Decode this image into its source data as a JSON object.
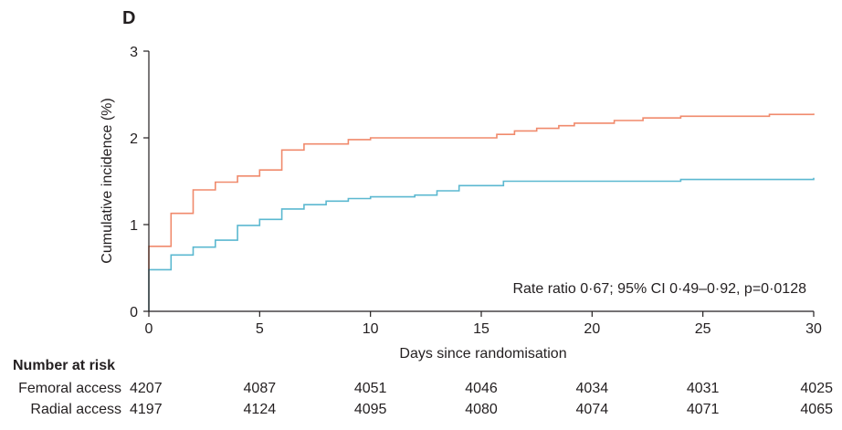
{
  "chart_data": {
    "type": "line",
    "panel_label": "D",
    "xlabel": "Days since randomisation",
    "ylabel": "Cumulative incidence (%)",
    "xlim": [
      0,
      30
    ],
    "ylim": [
      0,
      3
    ],
    "x_ticks": [
      0,
      5,
      10,
      15,
      20,
      25,
      30
    ],
    "x_tick_labels": [
      "0",
      "5",
      "10",
      "15",
      "20",
      "25",
      "30"
    ],
    "y_ticks": [
      0,
      1,
      2,
      3
    ],
    "y_tick_labels": [
      "0",
      "1",
      "2",
      "3"
    ],
    "grid": false,
    "step": true,
    "annotation": "Rate ratio 0·67; 95% CI 0·49–0·92, p=0·0128",
    "series": [
      {
        "key": "femoral",
        "color": "#f08a6c",
        "points": [
          [
            0,
            0.75
          ],
          [
            1,
            1.13
          ],
          [
            2,
            1.4
          ],
          [
            3,
            1.49
          ],
          [
            4,
            1.56
          ],
          [
            5,
            1.63
          ],
          [
            6,
            1.86
          ],
          [
            7,
            1.93
          ],
          [
            9,
            1.98
          ],
          [
            10,
            2.0
          ],
          [
            15.7,
            2.04
          ],
          [
            16.5,
            2.08
          ],
          [
            17.5,
            2.11
          ],
          [
            18.5,
            2.14
          ],
          [
            19.2,
            2.17
          ],
          [
            21,
            2.2
          ],
          [
            22.3,
            2.23
          ],
          [
            24,
            2.25
          ],
          [
            28,
            2.27
          ],
          [
            30,
            2.28
          ]
        ]
      },
      {
        "key": "radial",
        "color": "#5bb8d0",
        "points": [
          [
            0,
            0.48
          ],
          [
            1,
            0.65
          ],
          [
            2,
            0.74
          ],
          [
            3,
            0.82
          ],
          [
            4,
            0.99
          ],
          [
            5,
            1.06
          ],
          [
            6,
            1.18
          ],
          [
            7,
            1.23
          ],
          [
            8,
            1.27
          ],
          [
            9,
            1.3
          ],
          [
            10,
            1.32
          ],
          [
            12,
            1.34
          ],
          [
            13,
            1.39
          ],
          [
            14,
            1.45
          ],
          [
            16,
            1.5
          ],
          [
            24,
            1.52
          ],
          [
            30,
            1.54
          ]
        ]
      }
    ]
  },
  "risk_table": {
    "title": "Number at risk",
    "days": [
      0,
      5,
      10,
      15,
      20,
      25,
      30
    ],
    "rows": [
      {
        "label": "Femoral access",
        "values": [
          "4207",
          "4087",
          "4051",
          "4046",
          "4034",
          "4031",
          "4025"
        ]
      },
      {
        "label": "Radial access",
        "values": [
          "4197",
          "4124",
          "4095",
          "4080",
          "4074",
          "4071",
          "4065"
        ]
      }
    ]
  }
}
